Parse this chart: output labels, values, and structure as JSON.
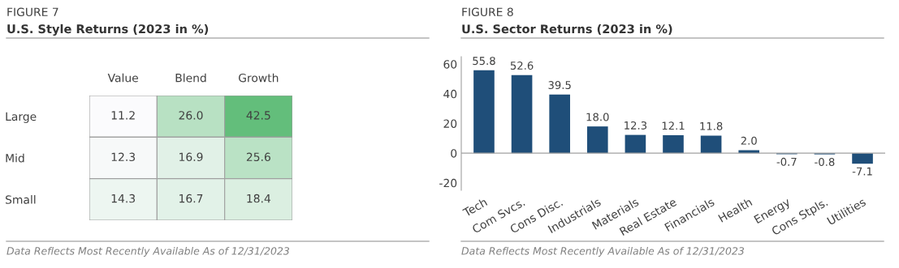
{
  "chart_data": [
    {
      "type": "heatmap",
      "subtitle": "FIGURE 7",
      "title": "U.S. Style Returns (2023 in %)",
      "categories": [
        "Value",
        "Blend",
        "Growth"
      ],
      "y_categories": [
        "Large",
        "Mid",
        "Small"
      ],
      "cells": [
        [
          11.2,
          26.0,
          42.5
        ],
        [
          12.3,
          16.9,
          25.6
        ],
        [
          14.3,
          16.7,
          18.4
        ]
      ],
      "cell_labels": [
        [
          "11.2",
          "26.0",
          "42.5"
        ],
        [
          "12.3",
          "16.9",
          "25.6"
        ],
        [
          "14.3",
          "16.7",
          "18.4"
        ]
      ],
      "annotations": [
        "Data Reflects Most Recently Available As of 12/31/2023"
      ]
    },
    {
      "type": "bar",
      "subtitle": "FIGURE 8",
      "title": "U.S. Sector Returns (2023 in %)",
      "categories": [
        "Tech",
        "Com Svcs.",
        "Cons Disc.",
        "Industrials",
        "Materials",
        "Real Estate",
        "Financials",
        "Health",
        "Energy",
        "Cons Stpls.",
        "Utilities"
      ],
      "values": [
        55.8,
        52.6,
        39.5,
        18.0,
        12.3,
        12.1,
        11.8,
        2.0,
        -0.7,
        -0.8,
        -7.1
      ],
      "color": "#1f4e79",
      "data_labels": true,
      "value_labels": [
        "55.8",
        "52.6",
        "39.5",
        "18.0",
        "12.3",
        "12.1",
        "11.8",
        "2.0",
        "-0.7",
        "-0.8",
        "-7.1"
      ],
      "ylim": [
        -25,
        65
      ],
      "yticks": [
        -20,
        0,
        20,
        40,
        60
      ],
      "grid": false,
      "ref_lines": [
        {
          "axis": "y",
          "value": 0,
          "color": "#a0a0a0"
        }
      ],
      "annotations": [
        "Data Reflects Most Recently Available As of 12/31/2023"
      ]
    }
  ]
}
